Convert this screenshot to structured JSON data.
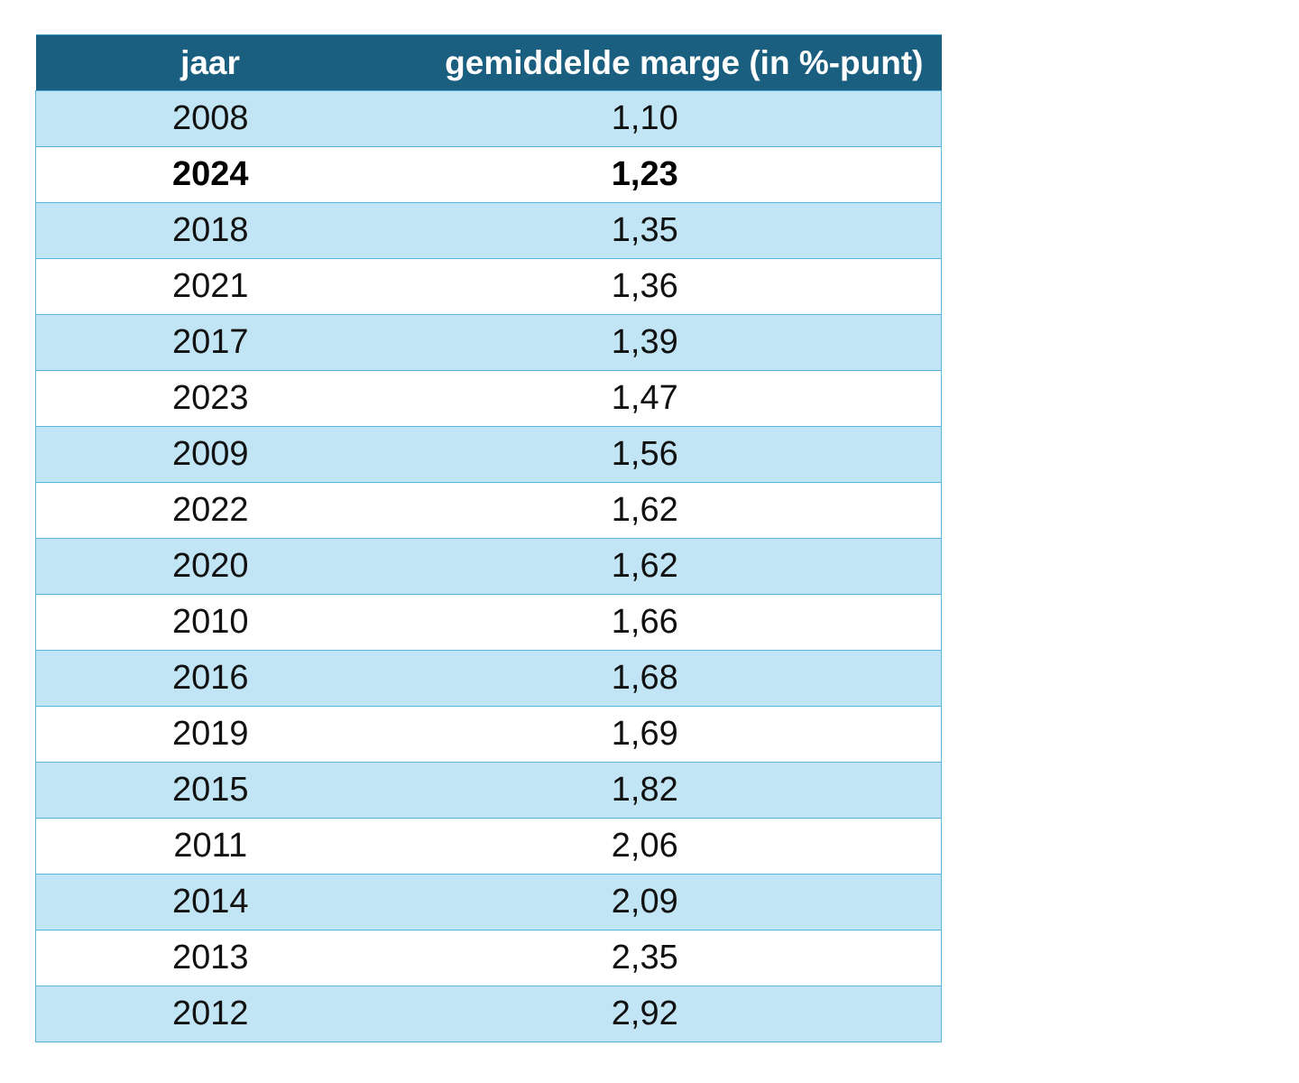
{
  "chart_data": {
    "type": "table",
    "columns": [
      "jaar",
      "gemiddelde marge (in %-punt)"
    ],
    "rows": [
      {
        "year": "2008",
        "margin": "1,10",
        "bold": false
      },
      {
        "year": "2024",
        "margin": "1,23",
        "bold": true
      },
      {
        "year": "2018",
        "margin": "1,35",
        "bold": false
      },
      {
        "year": "2021",
        "margin": "1,36",
        "bold": false
      },
      {
        "year": "2017",
        "margin": "1,39",
        "bold": false
      },
      {
        "year": "2023",
        "margin": "1,47",
        "bold": false
      },
      {
        "year": "2009",
        "margin": "1,56",
        "bold": false
      },
      {
        "year": "2022",
        "margin": "1,62",
        "bold": false
      },
      {
        "year": "2020",
        "margin": "1,62",
        "bold": false
      },
      {
        "year": "2010",
        "margin": "1,66",
        "bold": false
      },
      {
        "year": "2016",
        "margin": "1,68",
        "bold": false
      },
      {
        "year": "2019",
        "margin": "1,69",
        "bold": false
      },
      {
        "year": "2015",
        "margin": "1,82",
        "bold": false
      },
      {
        "year": "2011",
        "margin": "2,06",
        "bold": false
      },
      {
        "year": "2014",
        "margin": "2,09",
        "bold": false
      },
      {
        "year": "2013",
        "margin": "2,35",
        "bold": false
      },
      {
        "year": "2012",
        "margin": "2,92",
        "bold": false
      }
    ],
    "colors": {
      "header_bg": "#1b5f80",
      "header_text": "#ffffff",
      "row_odd_bg": "#c1e5f4",
      "row_even_bg": "#ffffff",
      "border": "#5cb3dc"
    }
  }
}
